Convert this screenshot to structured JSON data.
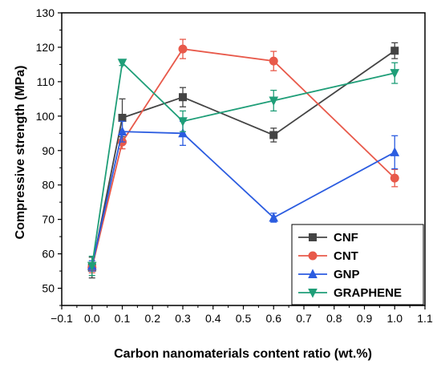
{
  "chart_data": {
    "type": "line",
    "xlabel": "Carbon nanomaterials content ratio (wt.%)",
    "ylabel": "Compressive strength (MPa)",
    "xlim": [
      -0.1,
      1.1
    ],
    "ylim": [
      45,
      130
    ],
    "xticks": [
      -0.1,
      0.0,
      0.1,
      0.2,
      0.3,
      0.4,
      0.5,
      0.6,
      0.7,
      0.8,
      0.9,
      1.0,
      1.1
    ],
    "xtick_labels": [
      "−0.1",
      "0.0",
      "0.1",
      "0.2",
      "0.3",
      "0.4",
      "0.5",
      "0.6",
      "0.7",
      "0.8",
      "0.9",
      "1.0",
      "1.1"
    ],
    "yticks": [
      50,
      60,
      70,
      80,
      90,
      100,
      110,
      120,
      130
    ],
    "ytick_labels": [
      "50",
      "60",
      "70",
      "80",
      "90",
      "100",
      "110",
      "120",
      "130"
    ],
    "grid": false,
    "legend_position": "bottom-right",
    "series": [
      {
        "name": "CNF",
        "color": "#444444",
        "marker": "square",
        "x": [
          0.0,
          0.1,
          0.3,
          0.6,
          1.0
        ],
        "y": [
          56,
          99.5,
          105.5,
          94.5,
          119
        ],
        "err": [
          3,
          5.5,
          2.8,
          2,
          2.3
        ]
      },
      {
        "name": "CNT",
        "color": "#e8594a",
        "marker": "circle",
        "x": [
          0.0,
          0.1,
          0.3,
          0.6,
          1.0
        ],
        "y": [
          56,
          92.5,
          119.5,
          116,
          82
        ],
        "err": [
          1.5,
          2,
          2.8,
          2.8,
          2.5
        ]
      },
      {
        "name": "GNP",
        "color": "#2b5ce0",
        "marker": "triangle-up",
        "x": [
          0.0,
          0.1,
          0.3,
          0.6,
          1.0
        ],
        "y": [
          56.5,
          95.5,
          95,
          70.5,
          89.5
        ],
        "err": [
          1.5,
          3,
          3.5,
          1.3,
          4.8
        ]
      },
      {
        "name": "GRAPHENE",
        "color": "#1f9e78",
        "marker": "triangle-down",
        "x": [
          0.0,
          0.1,
          0.3,
          0.6,
          1.0
        ],
        "y": [
          56.5,
          115.5,
          98.5,
          104.5,
          112.5
        ],
        "err": [
          2.8,
          0.8,
          3,
          3,
          3
        ]
      }
    ]
  }
}
